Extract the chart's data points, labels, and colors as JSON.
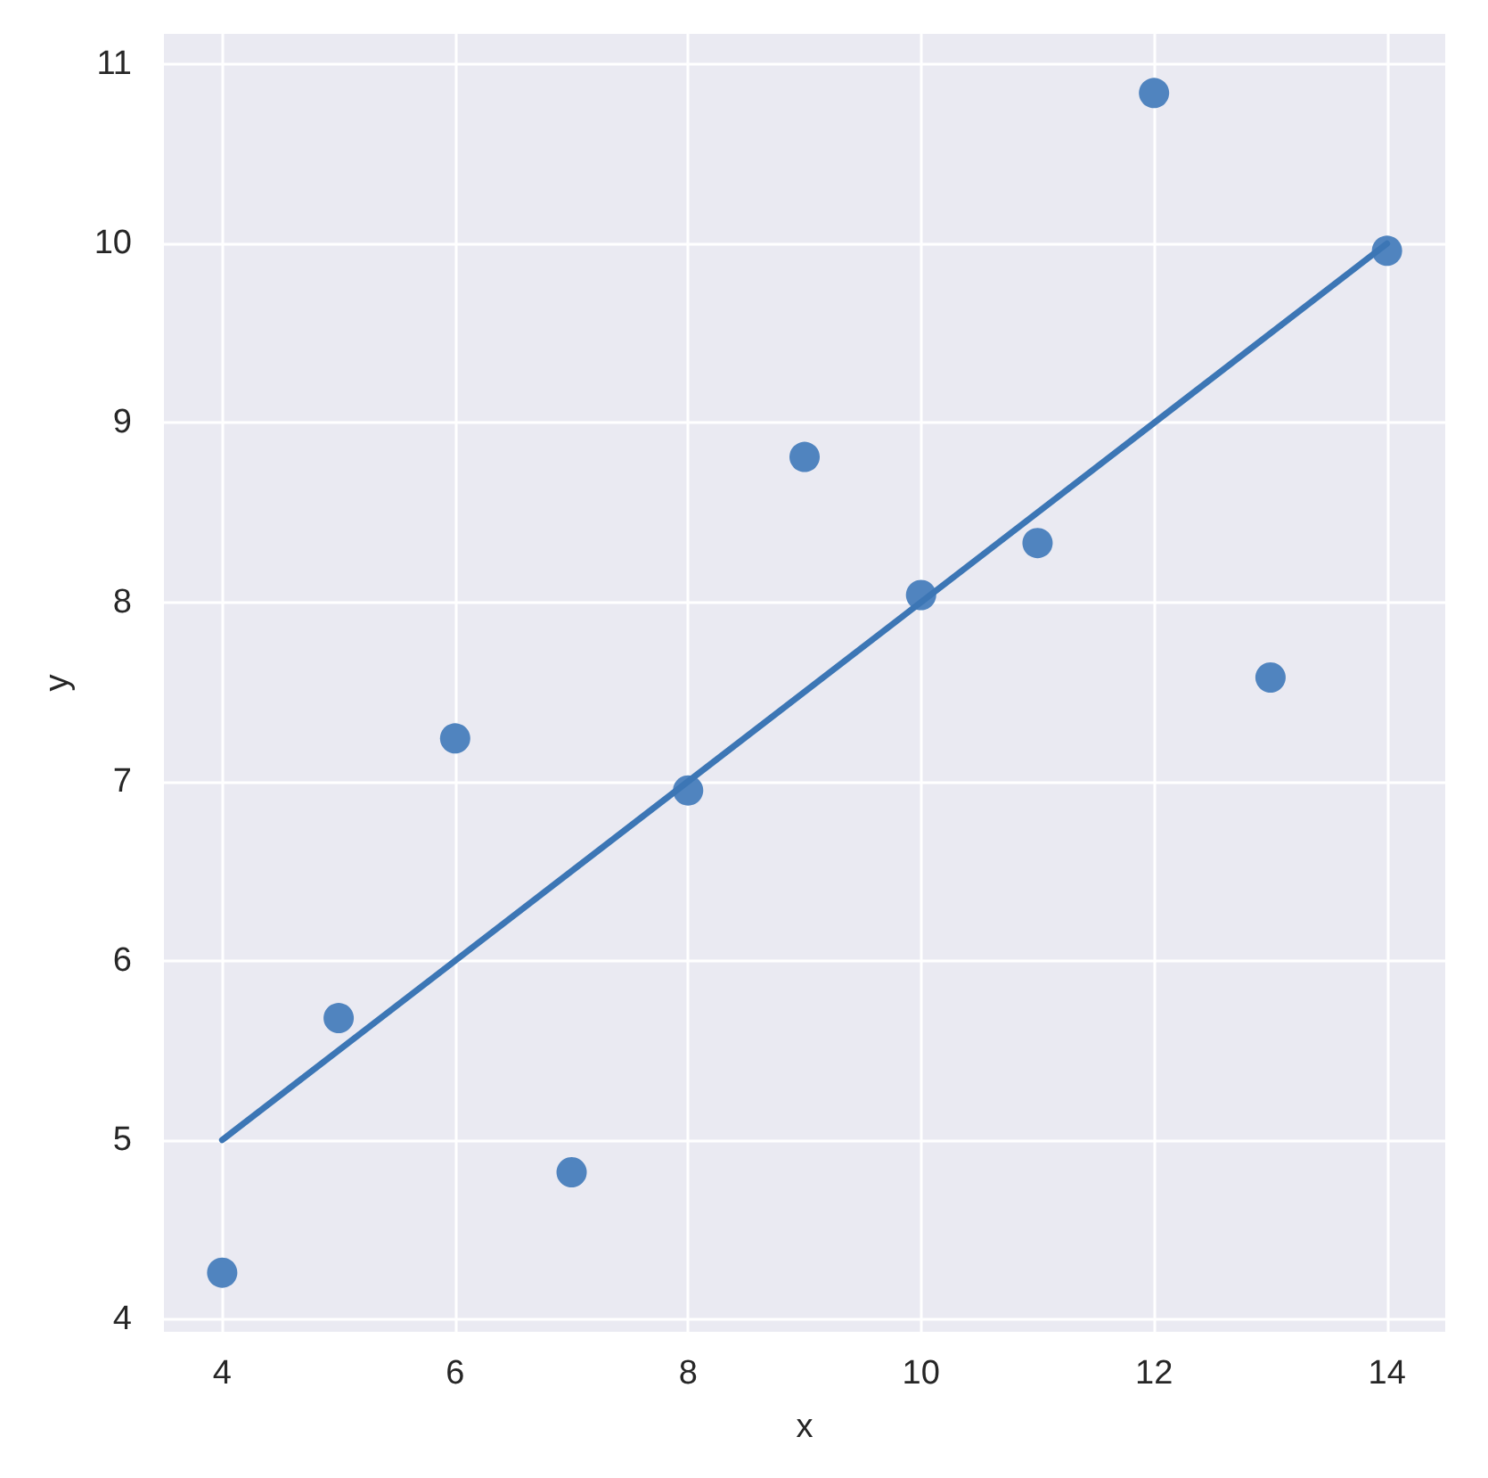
{
  "chart_data": {
    "type": "scatter",
    "xlabel": "x",
    "ylabel": "y",
    "series": [
      {
        "color": "#5084bf",
        "marker": "circle",
        "x": [
          10,
          8,
          13,
          9,
          11,
          14,
          6,
          4,
          12,
          7,
          5
        ],
        "values": [
          8.04,
          6.95,
          7.58,
          8.81,
          8.33,
          9.96,
          7.24,
          4.26,
          10.84,
          4.82,
          5.68
        ]
      },
      {
        "type": "line",
        "color": "#3c76b5",
        "marker": "none",
        "line_style": "solid",
        "x": [
          4,
          14
        ],
        "values": [
          5,
          10
        ]
      }
    ],
    "xlim": [
      3.5,
      14.5
    ],
    "ylim": [
      3.93,
      11.17
    ],
    "xticks": [
      4,
      6,
      8,
      10,
      12,
      14
    ],
    "yticks": [
      4,
      5,
      6,
      7,
      8,
      9,
      10,
      11
    ],
    "grid": true
  }
}
